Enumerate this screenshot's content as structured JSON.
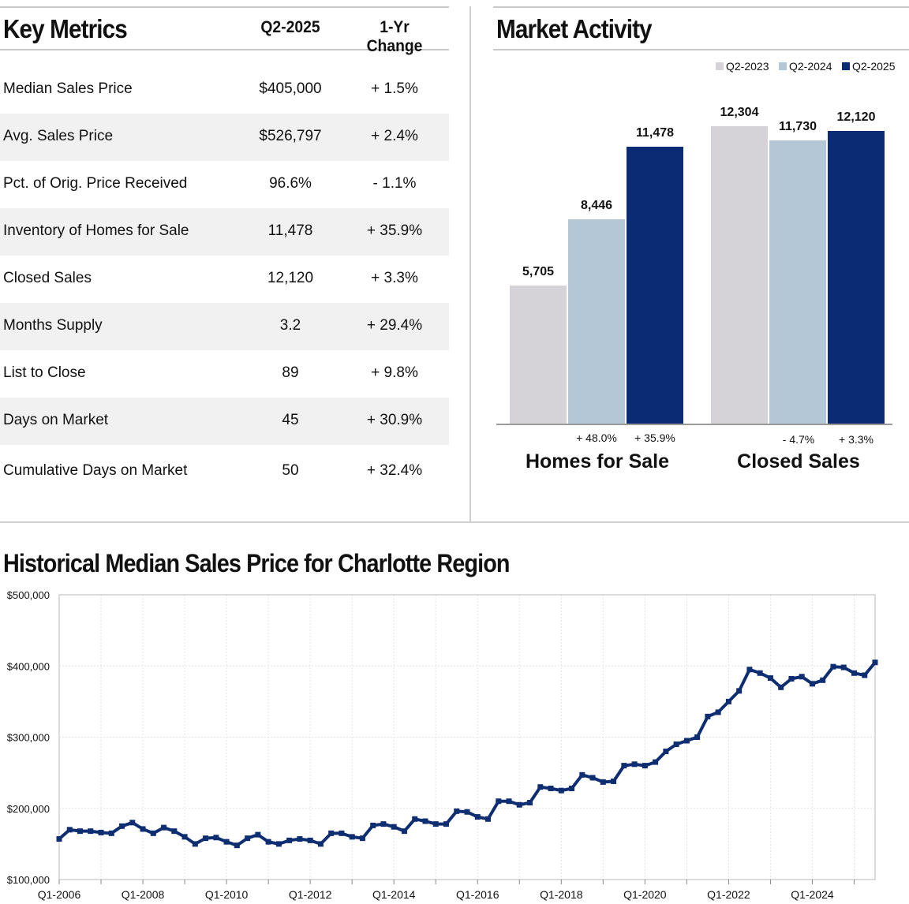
{
  "key_metrics": {
    "title": "Key Metrics",
    "col_value": "Q2-2025",
    "col_change": "1-Yr Change",
    "rows": [
      {
        "label": "Median Sales Price",
        "value": "$405,000",
        "change": "+ 1.5%"
      },
      {
        "label": "Avg. Sales Price",
        "value": "$526,797",
        "change": "+ 2.4%"
      },
      {
        "label": "Pct. of Orig. Price Received",
        "value": "96.6%",
        "change": "- 1.1%"
      },
      {
        "label": "Inventory of Homes for Sale",
        "value": "11,478",
        "change": "+ 35.9%"
      },
      {
        "label": "Closed Sales",
        "value": "12,120",
        "change": "+ 3.3%"
      },
      {
        "label": "Months Supply",
        "value": "3.2",
        "change": "+ 29.4%"
      },
      {
        "label": "List to Close",
        "value": "89",
        "change": "+ 9.8%"
      },
      {
        "label": "Days on Market",
        "value": "45",
        "change": "+ 30.9%"
      },
      {
        "label": "Cumulative Days on Market",
        "value": "50",
        "change": "+ 32.4%"
      }
    ]
  },
  "market_activity": {
    "title": "Market Activity"
  },
  "historical": {
    "title": "Historical Median Sales Price for Charlotte Region"
  },
  "colors": {
    "q2_2023": "#d5d3d8",
    "q2_2024": "#b4c7d6",
    "q2_2025": "#0b2c74",
    "line": "#0f2e72"
  },
  "chart_data": [
    {
      "type": "bar",
      "title": "Market Activity",
      "legend": [
        "Q2-2023",
        "Q2-2024",
        "Q2-2025"
      ],
      "categories": [
        "Homes for Sale",
        "Closed Sales"
      ],
      "series": [
        {
          "name": "Q2-2023",
          "values": [
            5705,
            12304
          ],
          "labels": [
            "5,705",
            "12,304"
          ]
        },
        {
          "name": "Q2-2024",
          "values": [
            8446,
            11730
          ],
          "labels": [
            "8,446",
            "11,730"
          ]
        },
        {
          "name": "Q2-2025",
          "values": [
            11478,
            12120
          ],
          "labels": [
            "11,478",
            "12,120"
          ]
        }
      ],
      "change_labels": [
        [
          "+ 48.0%",
          "+ 35.9%"
        ],
        [
          "- 4.7%",
          "+ 3.3%"
        ]
      ],
      "ylim": [
        0,
        13000
      ]
    },
    {
      "type": "line",
      "title": "Historical Median Sales Price for Charlotte Region",
      "y_ticks": [
        "$100,000",
        "$200,000",
        "$300,000",
        "$400,000",
        "$500,000"
      ],
      "ylim": [
        100000,
        500000
      ],
      "x_ticks": [
        "Q1-2006",
        "Q1-2008",
        "Q1-2010",
        "Q1-2012",
        "Q1-2014",
        "Q1-2016",
        "Q1-2018",
        "Q1-2020",
        "Q1-2022",
        "Q1-2024"
      ],
      "x_start": "Q1-2006",
      "values": [
        157000,
        170000,
        168000,
        168000,
        166000,
        165000,
        175000,
        180000,
        171000,
        165000,
        173000,
        168000,
        160000,
        150000,
        158000,
        159000,
        153000,
        148000,
        158000,
        163000,
        153000,
        150000,
        155000,
        157000,
        155000,
        150000,
        165000,
        165000,
        160000,
        158000,
        176000,
        178000,
        174000,
        168000,
        185000,
        182000,
        178000,
        178000,
        196000,
        195000,
        188000,
        185000,
        210000,
        210000,
        205000,
        208000,
        230000,
        228000,
        225000,
        228000,
        247000,
        243000,
        237000,
        238000,
        260000,
        262000,
        260000,
        265000,
        280000,
        290000,
        295000,
        300000,
        329000,
        335000,
        350000,
        365000,
        395000,
        390000,
        383000,
        370000,
        382000,
        385000,
        375000,
        380000,
        399000,
        398000,
        390000,
        387000,
        405000
      ]
    }
  ]
}
